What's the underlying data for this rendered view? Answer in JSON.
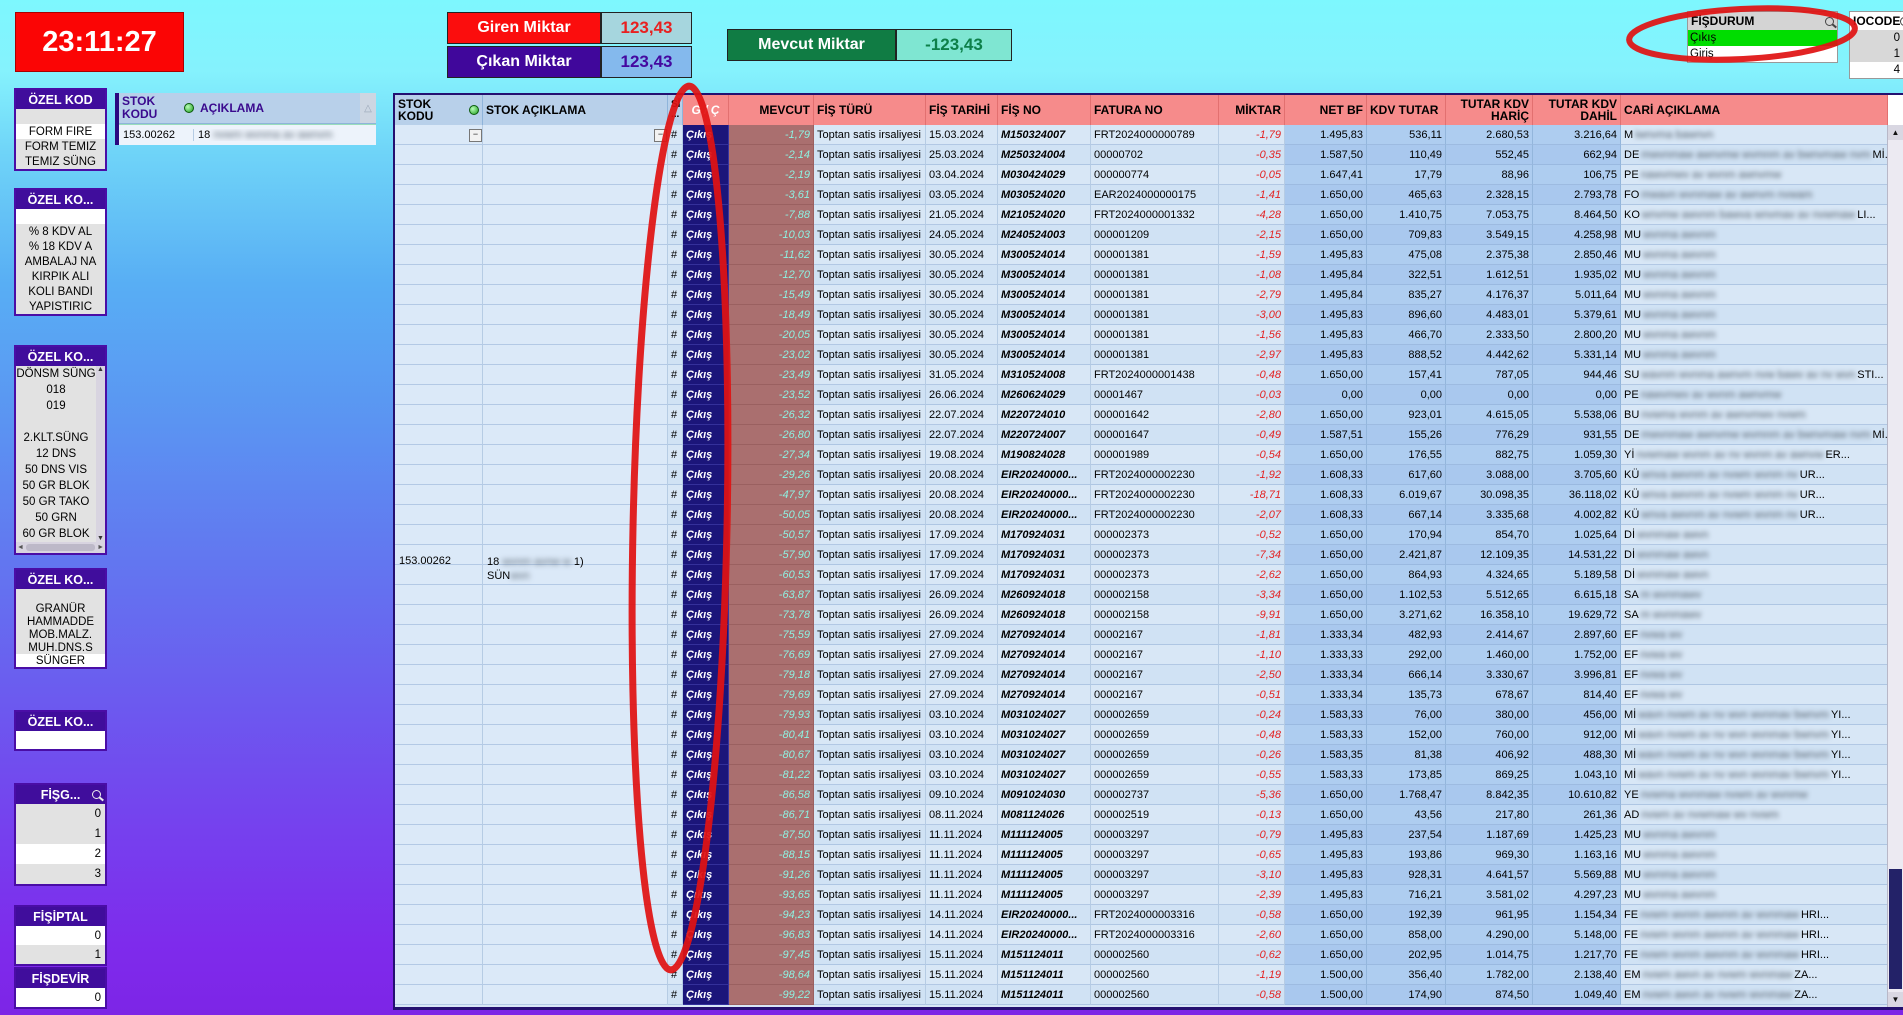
{
  "clock": "23:11:27",
  "summary": {
    "giren_label": "Giren Miktar",
    "giren_value": "123,43",
    "cikan_label": "Çıkan Miktar",
    "cikan_value": "123,43",
    "mevcut_label": "Mevcut Miktar",
    "mevcut_value": "-123,43"
  },
  "fisdurum": {
    "title": "FİŞDURUM",
    "selected": "Çıkış",
    "other": "Giriş"
  },
  "iocode": {
    "title": "IOCODE",
    "values": [
      "0",
      "1",
      "4"
    ],
    "white_rows": [
      2
    ]
  },
  "colors": {
    "clock_bg": "#fb0505",
    "giren": "#fb0d0d",
    "cikan": "#40079b",
    "mevcut": "#107c44",
    "selected_green": "#00dd00",
    "annotation_red": "#e01212",
    "gc_cell": "#1b157a",
    "mevcut_cell": "#aa6f6f",
    "header_red": "#f68b8b",
    "header_blue": "#b8d0ea"
  },
  "sidebar": {
    "panels": [
      {
        "title": "ÖZEL KOD",
        "rows": [
          "",
          "FORM FIRE",
          "FORM TEMIZ",
          "TEMIZ SÜNG"
        ],
        "white_rows": [
          1
        ]
      },
      {
        "title": "ÖZEL KO...",
        "rows": [
          "",
          "% 8 KDV AL",
          "% 18 KDV A",
          "AMBALAJ NA",
          "KIRPIK ALI",
          "KOLI BANDI",
          "YAPISTIRIC"
        ],
        "white_rows": [
          0
        ]
      },
      {
        "title": "ÖZEL KO...",
        "rows": [
          "DÖNSM SÜNG",
          "018",
          "019",
          "",
          "2.KLT.SÜNG",
          "12 DNS",
          "50 DNS VIS",
          "50 GR BLOK",
          "50 GR TAKO",
          "50 GRN",
          "60 GR BLOK"
        ],
        "white_rows": [],
        "scroll": true
      },
      {
        "title": "ÖZEL KO...",
        "rows": [
          "",
          "GRANÜR",
          "HAMMADDE",
          "MOB.MALZ.",
          "MUH.DNS.S",
          "SÜNGER"
        ],
        "white_rows": [
          5
        ]
      },
      {
        "title": "ÖZEL KO...",
        "rows": [
          ""
        ],
        "white_rows": [
          0
        ]
      },
      {
        "title": "FİŞG...",
        "magnifier": true,
        "numeric": true,
        "rows": [
          "0",
          "1",
          "2",
          "3"
        ],
        "white_rows": [
          2
        ]
      },
      {
        "title": "FİŞİPTAL",
        "numeric": true,
        "rows": [
          "0",
          "1"
        ],
        "white_rows": [
          0
        ]
      },
      {
        "title": "FİŞDEVİR",
        "numeric": true,
        "rows": [
          "0"
        ],
        "white_rows": [
          0
        ]
      }
    ]
  },
  "stok_panel": {
    "col1": "STOK KODU",
    "col2": "AÇIKLAMA",
    "kodu": "153.00262",
    "acik_prefix": "18",
    "acik_blur": "nvwm wvnma av awnvm"
  },
  "table": {
    "headers": {
      "stok_kodu": "STOK KODU",
      "stok_aciklama": "STOK AÇIKLAMA",
      "si1": "Sİ",
      "si2": "...",
      "gc": "G / Ç",
      "mevcut": "MEVCUT",
      "fis_turu": "FİŞ TÜRÜ",
      "fis_tarihi": "FİŞ TARİHİ",
      "fis_no": "FİŞ NO",
      "fatura_no": "FATURA NO",
      "miktar": "MİKTAR",
      "net_bf": "NET BF",
      "kdv_tutar": "KDV TUTAR",
      "tutar_haric": "TUTAR KDV HARİÇ",
      "tutar_dahil": "TUTAR KDV DAHİL",
      "cari": "CARİ AÇIKLAMA"
    },
    "si_value": "#",
    "gc_value": "Çıkış",
    "fis_turu_value": "Toptan satis irsaliyesi",
    "group": {
      "kodu": "153.00262",
      "acik1_prefix": "18",
      "acik1_blur": "wvnm avnw w",
      "acik1_suffix": "1)",
      "acik2_prefix": "SÜN",
      "acik2_blur": "wvn"
    },
    "rows": [
      [
        "-1,79",
        "15.03.2024",
        "M150324007",
        "FRT2024000000789",
        "-1,79",
        "1.495,83",
        "536,11",
        "2.680,53",
        "3.216,64",
        "M",
        "iwnvma bawnvn",
        ""
      ],
      [
        "-2,14",
        "25.03.2024",
        "M250324004",
        "00000702",
        "-0,35",
        "1.587,50",
        "110,49",
        "552,45",
        "662,94",
        "DE",
        "mwvnmaw awnvmw wvmnm av bwnvmaw nvm",
        "Mİ..."
      ],
      [
        "-2,19",
        "03.04.2024",
        "M030424029",
        "000000774",
        "-0,05",
        "1.647,41",
        "17,79",
        "88,96",
        "106,75",
        "PE",
        "nawvmwv av wvnm awnvmw",
        ""
      ],
      [
        "-3,61",
        "03.05.2024",
        "M030524020",
        "EAR2024000000175",
        "-1,41",
        "1.650,00",
        "465,63",
        "2.328,15",
        "2.793,78",
        "FO",
        "mwavn wvnmaw av awnvm nvwam",
        ""
      ],
      [
        "-7,88",
        "21.05.2024",
        "M210524020",
        "FRT2024000001332",
        "-4,28",
        "1.650,00",
        "1.410,75",
        "7.053,75",
        "8.464,50",
        "KO",
        "wnvmw awvnm bawva wnvmav av nvwmaw",
        "LI..."
      ],
      [
        "-10,03",
        "24.05.2024",
        "M240524003",
        "000001209",
        "-2,15",
        "1.650,00",
        "709,83",
        "3.549,15",
        "4.258,98",
        "MU",
        "wvnma awvnm",
        ""
      ],
      [
        "-11,62",
        "30.05.2024",
        "M300524014",
        "000001381",
        "-1,59",
        "1.495,83",
        "475,08",
        "2.375,38",
        "2.850,46",
        "MU",
        "wvnma awvnm",
        ""
      ],
      [
        "-12,70",
        "30.05.2024",
        "M300524014",
        "000001381",
        "-1,08",
        "1.495,84",
        "322,51",
        "1.612,51",
        "1.935,02",
        "MU",
        "wvnma awvnm",
        ""
      ],
      [
        "-15,49",
        "30.05.2024",
        "M300524014",
        "000001381",
        "-2,79",
        "1.495,84",
        "835,27",
        "4.176,37",
        "5.011,64",
        "MU",
        "wvnma awvnm",
        ""
      ],
      [
        "-18,49",
        "30.05.2024",
        "M300524014",
        "000001381",
        "-3,00",
        "1.495,83",
        "896,60",
        "4.483,01",
        "5.379,61",
        "MU",
        "wvnma awvnm",
        ""
      ],
      [
        "-20,05",
        "30.05.2024",
        "M300524014",
        "000001381",
        "-1,56",
        "1.495,83",
        "466,70",
        "2.333,50",
        "2.800,20",
        "MU",
        "wvnma awvnm",
        ""
      ],
      [
        "-23,02",
        "30.05.2024",
        "M300524014",
        "000001381",
        "-2,97",
        "1.495,83",
        "888,52",
        "4.442,62",
        "5.331,14",
        "MU",
        "wvnma awvnm",
        ""
      ],
      [
        "-23,49",
        "31.05.2024",
        "M310524008",
        "FRT2024000001438",
        "-0,48",
        "1.650,00",
        "157,41",
        "787,05",
        "944,46",
        "SU",
        "wavnm wvnma awnvm nvw bawv av nv wvn",
        "STI..."
      ],
      [
        "-23,52",
        "26.06.2024",
        "M260624029",
        "00001467",
        "-0,03",
        "0,00",
        "0,00",
        "0,00",
        "0,00",
        "PE",
        "nawvmwv av wvnm awnvmw",
        ""
      ],
      [
        "-26,32",
        "22.07.2024",
        "M220724010",
        "000001642",
        "-2,80",
        "1.650,00",
        "923,01",
        "4.615,05",
        "5.538,06",
        "BU",
        "nvwma wvnm av awnvmwv nvwm",
        ""
      ],
      [
        "-26,80",
        "22.07.2024",
        "M220724007",
        "000001647",
        "-0,49",
        "1.587,51",
        "155,26",
        "776,29",
        "931,55",
        "DE",
        "mwvnmaw awnvmw wvmnm av bwnvmaw nvm",
        "Mİ..."
      ],
      [
        "-27,34",
        "19.08.2024",
        "M190824028",
        "000001989",
        "-0,54",
        "1.650,00",
        "176,55",
        "882,75",
        "1.059,30",
        "Yİ",
        "nvwmaw wvnm av nv wvnm av awnvw",
        "ER..."
      ],
      [
        "-29,26",
        "20.08.2024",
        "EIR20240000...",
        "FRT2024000002230",
        "-1,92",
        "1.608,33",
        "617,60",
        "3.088,00",
        "3.705,60",
        "KÜ",
        "wnva awvnm av nvwm wvnm nv",
        "UR..."
      ],
      [
        "-47,97",
        "20.08.2024",
        "EIR20240000...",
        "FRT2024000002230",
        "-18,71",
        "1.608,33",
        "6.019,67",
        "30.098,35",
        "36.118,02",
        "KÜ",
        "wnva awvnm av nvwm wvnm nv",
        "UR..."
      ],
      [
        "-50,05",
        "20.08.2024",
        "EIR20240000...",
        "FRT2024000002230",
        "-2,07",
        "1.608,33",
        "667,14",
        "3.335,68",
        "4.002,82",
        "KÜ",
        "wnva awvnm av nvwm wvnm nv",
        "UR..."
      ],
      [
        "-50,57",
        "17.09.2024",
        "M170924031",
        "000002373",
        "-0,52",
        "1.650,00",
        "170,94",
        "854,70",
        "1.025,64",
        "Dİ",
        "wvnmaw awvn",
        ""
      ],
      [
        "-57,90",
        "17.09.2024",
        "M170924031",
        "000002373",
        "-7,34",
        "1.650,00",
        "2.421,87",
        "12.109,35",
        "14.531,22",
        "Dİ",
        "wvnmaw awvn",
        ""
      ],
      [
        "-60,53",
        "17.09.2024",
        "M170924031",
        "000002373",
        "-2,62",
        "1.650,00",
        "864,93",
        "4.324,65",
        "5.189,58",
        "Dİ",
        "wvnmaw awvn",
        ""
      ],
      [
        "-63,87",
        "26.09.2024",
        "M260924018",
        "000002158",
        "-3,34",
        "1.650,00",
        "1.102,53",
        "5.512,65",
        "6.615,18",
        "SA",
        "m wvnmawv",
        ""
      ],
      [
        "-73,78",
        "26.09.2024",
        "M260924018",
        "000002158",
        "-9,91",
        "1.650,00",
        "3.271,62",
        "16.358,10",
        "19.629,72",
        "SA",
        "m wvnmawv",
        ""
      ],
      [
        "-75,59",
        "27.09.2024",
        "M270924014",
        "00002167",
        "-1,81",
        "1.333,34",
        "482,93",
        "2.414,67",
        "2.897,60",
        "EF",
        "nvwa wv",
        ""
      ],
      [
        "-76,69",
        "27.09.2024",
        "M270924014",
        "00002167",
        "-1,10",
        "1.333,33",
        "292,00",
        "1.460,00",
        "1.752,00",
        "EF",
        "nvwa wv",
        ""
      ],
      [
        "-79,18",
        "27.09.2024",
        "M270924014",
        "00002167",
        "-2,50",
        "1.333,34",
        "666,14",
        "3.330,67",
        "3.996,81",
        "EF",
        "nvwa wv",
        ""
      ],
      [
        "-79,69",
        "27.09.2024",
        "M270924014",
        "00002167",
        "-0,51",
        "1.333,34",
        "135,73",
        "678,67",
        "814,40",
        "EF",
        "nvwa wv",
        ""
      ],
      [
        "-79,93",
        "03.10.2024",
        "M031024027",
        "000002659",
        "-0,24",
        "1.583,33",
        "76,00",
        "380,00",
        "456,00",
        "Mİ",
        "wavn nvwm av nv wvn wvnmav bwnvm",
        "YI..."
      ],
      [
        "-80,41",
        "03.10.2024",
        "M031024027",
        "000002659",
        "-0,48",
        "1.583,33",
        "152,00",
        "760,00",
        "912,00",
        "Mİ",
        "wavn nvwm av nv wvn wvnmav bwnvm",
        "YI..."
      ],
      [
        "-80,67",
        "03.10.2024",
        "M031024027",
        "000002659",
        "-0,26",
        "1.583,35",
        "81,38",
        "406,92",
        "488,30",
        "Mİ",
        "wavn nvwm av nv wvn wvnmav bwnvm",
        "YI..."
      ],
      [
        "-81,22",
        "03.10.2024",
        "M031024027",
        "000002659",
        "-0,55",
        "1.583,33",
        "173,85",
        "869,25",
        "1.043,10",
        "Mİ",
        "wavn nvwm av nv wvn wvnmav bwnvm",
        "YI..."
      ],
      [
        "-86,58",
        "09.10.2024",
        "M091024030",
        "000002737",
        "-5,36",
        "1.650,00",
        "1.768,47",
        "8.842,35",
        "10.610,82",
        "YE",
        "nvwma wvnmaw nvwm av wvnmw",
        ""
      ],
      [
        "-86,71",
        "08.11.2024",
        "M081124026",
        "000002519",
        "-0,13",
        "1.650,00",
        "43,56",
        "217,80",
        "261,36",
        "AD",
        "nvwm av nvwmaw wv nvwm",
        ""
      ],
      [
        "-87,50",
        "11.11.2024",
        "M111124005",
        "000003297",
        "-0,79",
        "1.495,83",
        "237,54",
        "1.187,69",
        "1.425,23",
        "MU",
        "wvnma awvnm",
        ""
      ],
      [
        "-88,15",
        "11.11.2024",
        "M111124005",
        "000003297",
        "-0,65",
        "1.495,83",
        "193,86",
        "969,30",
        "1.163,16",
        "MU",
        "wvnma awvnm",
        ""
      ],
      [
        "-91,26",
        "11.11.2024",
        "M111124005",
        "000003297",
        "-3,10",
        "1.495,83",
        "928,31",
        "4.641,57",
        "5.569,88",
        "MU",
        "wvnma awvnm",
        ""
      ],
      [
        "-93,65",
        "11.11.2024",
        "M111124005",
        "000003297",
        "-2,39",
        "1.495,83",
        "716,21",
        "3.581,02",
        "4.297,23",
        "MU",
        "wvnma awvnm",
        ""
      ],
      [
        "-94,23",
        "14.11.2024",
        "EIR20240000...",
        "FRT2024000003316",
        "-0,58",
        "1.650,00",
        "192,39",
        "961,95",
        "1.154,34",
        "FE",
        "nvwm wvnm awvnm av wvnmaw",
        "HRI..."
      ],
      [
        "-96,83",
        "14.11.2024",
        "EIR20240000...",
        "FRT2024000003316",
        "-2,60",
        "1.650,00",
        "858,00",
        "4.290,00",
        "5.148,00",
        "FE",
        "nvwm wvnm awvnm av wvnmaw",
        "HRI..."
      ],
      [
        "-97,45",
        "15.11.2024",
        "M151124011",
        "000002560",
        "-0,62",
        "1.650,00",
        "202,95",
        "1.014,75",
        "1.217,70",
        "FE",
        "nvwm wvnm awvnm av wvnmaw",
        "HRI..."
      ],
      [
        "-98,64",
        "15.11.2024",
        "M151124011",
        "000002560",
        "-1,19",
        "1.500,00",
        "356,40",
        "1.782,00",
        "2.138,40",
        "EM",
        "nvwm awvn av nvwm wvnmaw",
        "ZA..."
      ],
      [
        "-99,22",
        "15.11.2024",
        "M151124011",
        "000002560",
        "-0,58",
        "1.500,00",
        "174,90",
        "874,50",
        "1.049,40",
        "EM",
        "nvwm awvn av nvwm wvnmaw",
        "ZA..."
      ]
    ]
  }
}
